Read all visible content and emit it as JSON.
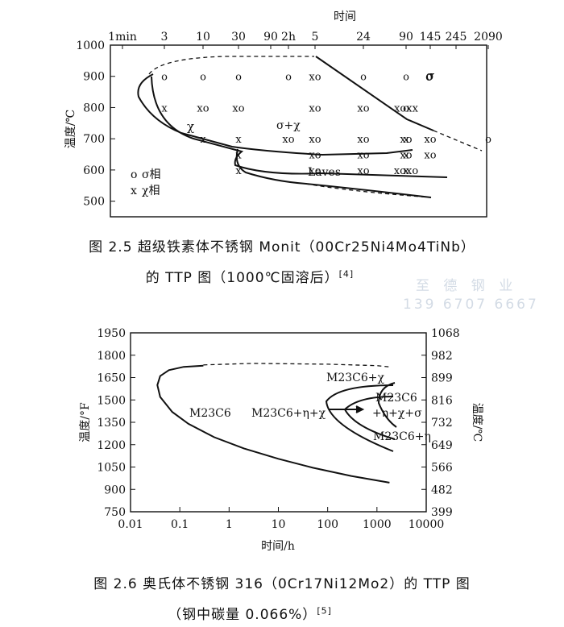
{
  "figure1": {
    "caption_line1": "图 2.5   超级铁素体不锈钢 Monit（00Cr25Ni4Mo4TiNb）",
    "caption_line2": "的 TTP 图（1000℃固溶后）",
    "caption_ref": "[4]",
    "chart_data": {
      "type": "scatter",
      "title": "",
      "xlabel": "时间",
      "ylabel": "温度/℃",
      "x_tick_labels": [
        "1min",
        "3",
        "10",
        "30",
        "90",
        "2h",
        "5",
        "24",
        "90",
        "145",
        "245",
        "2090"
      ],
      "y_ticks": [
        1000,
        900,
        800,
        700,
        600,
        500
      ],
      "ylim": [
        450,
        1000
      ],
      "legend": [
        {
          "symbol": "o",
          "text": "σ相"
        },
        {
          "symbol": "x",
          "text": "χ相"
        }
      ],
      "region_labels": [
        "χ",
        "σ+χ",
        "Laves",
        "σ"
      ],
      "markers": [
        {
          "t": "o",
          "x": "3",
          "y": 900
        },
        {
          "t": "o",
          "x": "10",
          "y": 900
        },
        {
          "t": "o",
          "x": "30",
          "y": 900
        },
        {
          "t": "o",
          "x": "90",
          "y": 900
        },
        {
          "t": "o",
          "x": "2h",
          "y": 900
        },
        {
          "t": "xo",
          "x": "5",
          "y": 900
        },
        {
          "t": "o",
          "x": "24",
          "y": 900
        },
        {
          "t": "σ",
          "x": "145",
          "y": 900
        },
        {
          "t": "x",
          "x": "3",
          "y": 800
        },
        {
          "t": "xo",
          "x": "10",
          "y": 800
        },
        {
          "t": "xo",
          "x": "30",
          "y": 800
        },
        {
          "t": "xoxx",
          "x": "90",
          "y": 800
        },
        {
          "t": "xo",
          "x": "5",
          "y": 800
        },
        {
          "t": "xo",
          "x": "24",
          "y": 800
        },
        {
          "t": "o",
          "x": "90",
          "y": 800
        },
        {
          "t": "x",
          "x": "10",
          "y": 700
        },
        {
          "t": "x",
          "x": "30",
          "y": 700
        },
        {
          "t": "x",
          "x": "90",
          "y": 700
        },
        {
          "t": "xo",
          "x": "2h",
          "y": 700
        },
        {
          "t": "xo",
          "x": "5",
          "y": 700
        },
        {
          "t": "xo",
          "x": "24",
          "y": 700
        },
        {
          "t": "xo",
          "x": "90",
          "y": 700
        },
        {
          "t": "xo",
          "x": "145",
          "y": 700
        },
        {
          "t": "o",
          "x": "2090",
          "y": 700
        },
        {
          "t": "x",
          "x": "30",
          "y": 650
        },
        {
          "t": "x",
          "x": "90",
          "y": 650
        },
        {
          "t": "xo",
          "x": "5",
          "y": 650
        },
        {
          "t": "xo",
          "x": "24",
          "y": 650
        },
        {
          "t": "xo",
          "x": "90",
          "y": 650
        },
        {
          "t": "xo",
          "x": "145",
          "y": 650
        },
        {
          "t": "x",
          "x": "30",
          "y": 600
        },
        {
          "t": "x",
          "x": "90",
          "y": 600
        },
        {
          "t": "xo",
          "x": "5",
          "y": 600
        },
        {
          "t": "xo",
          "x": "24",
          "y": 600
        },
        {
          "t": "xoxo",
          "x": "90",
          "y": 600
        }
      ]
    }
  },
  "watermark": {
    "line1": "至 德 钢 业",
    "line2": "139 6707 6667"
  },
  "figure2": {
    "caption_line1": "图 2.6   奥氏体不锈钢 316（0Cr17Ni12Mo2）的 TTP 图",
    "caption_line2": "（钢中碳量 0.066%）",
    "caption_ref": "[5]",
    "chart_data": {
      "type": "line",
      "title": "",
      "xlabel": "时间/h",
      "ylabel_left": "温度/°F",
      "ylabel_right": "温度/℃",
      "x_scale": "log",
      "xlim": [
        0.01,
        10000
      ],
      "x_tick_labels": [
        "0.01",
        "0.1",
        "1",
        "10",
        "100",
        "1000",
        "10000"
      ],
      "ylim_left": [
        750,
        1950
      ],
      "y_ticks_left": [
        1950,
        1800,
        1650,
        1500,
        1350,
        1200,
        1050,
        900,
        750
      ],
      "y_ticks_right": [
        1068,
        982,
        899,
        816,
        732,
        649,
        566,
        482,
        399
      ],
      "region_labels": [
        "M23C6",
        "M23C6+η+χ",
        "M23C6+χ",
        "M23C6",
        "+η+χ+σ",
        "M23C6+η"
      ],
      "curves": [
        {
          "name": "",
          "style": "solid",
          "points": [
            [
              0.3,
              1730
            ],
            [
              0.12,
              1722
            ],
            [
              0.06,
              1700
            ],
            [
              0.04,
              1660
            ],
            [
              0.035,
              1600
            ],
            [
              0.04,
              1520
            ],
            [
              0.07,
              1420
            ],
            [
              0.15,
              1340
            ],
            [
              0.5,
              1250
            ],
            [
              2,
              1175
            ],
            [
              10,
              1105
            ],
            [
              50,
              1045
            ],
            [
              300,
              990
            ],
            [
              1800,
              945
            ]
          ]
        },
        {
          "name": "",
          "style": "dashed",
          "points": [
            [
              0.3,
              1735
            ],
            [
              3,
              1745
            ],
            [
              100,
              1740
            ],
            [
              1000,
              1730
            ],
            [
              2000,
              1720
            ]
          ]
        }
      ]
    }
  }
}
